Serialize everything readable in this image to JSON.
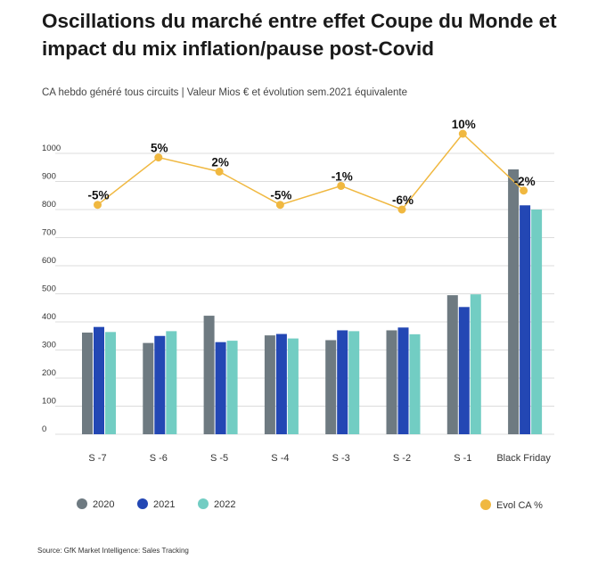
{
  "title": "Oscillations du marché entre effet Coupe du Monde et impact du mix inflation/pause post-Covid",
  "subtitle": "CA hebdo généré tous circuits | Valeur Mios € et évolution sem.2021 équivalente",
  "source": "Source: GfK Market Intelligence: Sales Tracking",
  "chart_data": {
    "type": "bar",
    "categories": [
      "S -7",
      "S -6",
      "S -5",
      "S -4",
      "S -3",
      "S -2",
      "S -1",
      "Black Friday"
    ],
    "yticks": [
      "0",
      "100",
      "200",
      "300",
      "400",
      "500",
      "600",
      "700",
      "800",
      "900",
      "1000"
    ],
    "ylim": [
      0,
      1000
    ],
    "grid": true,
    "series": [
      {
        "name": "2020",
        "color": "#6e7a81",
        "values": [
          362,
          325,
          422,
          352,
          335,
          370,
          495,
          943
        ]
      },
      {
        "name": "2021",
        "color": "#2347b4",
        "values": [
          382,
          350,
          328,
          357,
          370,
          380,
          453,
          815
        ]
      },
      {
        "name": "2022",
        "color": "#72cdc3",
        "values": [
          364,
          367,
          333,
          341,
          367,
          356,
          498,
          800
        ]
      }
    ],
    "line_series": {
      "name": "Evol CA %",
      "color": "#f0b840",
      "values": [
        -5,
        5,
        2,
        -5,
        -1,
        -6,
        10,
        -2
      ],
      "labels": [
        "-5%",
        "5%",
        "2%",
        "-5%",
        "-1%",
        "-6%",
        "10%",
        "-2%"
      ]
    },
    "legend": [
      "2020",
      "2021",
      "2022",
      "Evol CA %"
    ],
    "legend_position": "bottom"
  }
}
